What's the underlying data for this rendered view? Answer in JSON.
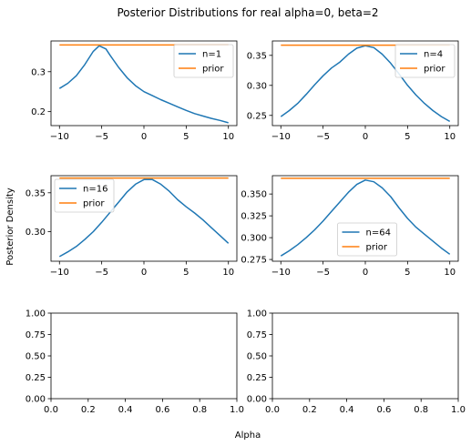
{
  "title": "Posterior Distributions for real alpha=0, beta=2",
  "ylabel": "Posterior Density",
  "xlabel": "Alpha",
  "colors": {
    "posterior": "#1f77b4",
    "prior": "#ff7f0e"
  },
  "chart_data": [
    {
      "type": "line",
      "xlim": [
        -11,
        11
      ],
      "ylim": [
        0.165,
        0.377
      ],
      "xticks": [
        -10,
        -5,
        0,
        5,
        10
      ],
      "xtick_labels": [
        "−10",
        "−5",
        "0",
        "5",
        "10"
      ],
      "yticks": [
        0.2,
        0.3
      ],
      "ytick_labels": [
        "0.2",
        "0.3"
      ],
      "legend_placement": "upper right",
      "series": [
        {
          "name": "n=1",
          "role": "posterior",
          "x": [
            -10,
            -9,
            -8,
            -7,
            -6,
            -5.3,
            -4.5,
            -4,
            -3,
            -2,
            -1,
            0,
            1,
            2,
            3,
            4,
            5,
            6,
            7,
            8,
            9,
            10
          ],
          "y": [
            0.258,
            0.271,
            0.29,
            0.318,
            0.351,
            0.365,
            0.357,
            0.341,
            0.311,
            0.285,
            0.265,
            0.25,
            0.24,
            0.23,
            0.221,
            0.212,
            0.203,
            0.195,
            0.189,
            0.183,
            0.178,
            0.172
          ]
        },
        {
          "name": "prior",
          "role": "prior",
          "x": [
            -10,
            10
          ],
          "y": [
            0.367,
            0.367
          ]
        }
      ]
    },
    {
      "type": "line",
      "xlim": [
        -11,
        11
      ],
      "ylim": [
        0.233,
        0.374
      ],
      "xticks": [
        -10,
        -5,
        0,
        5,
        10
      ],
      "xtick_labels": [
        "−10",
        "−5",
        "0",
        "5",
        "10"
      ],
      "yticks": [
        0.25,
        0.3,
        0.35
      ],
      "ytick_labels": [
        "0.25",
        "0.30",
        "0.35"
      ],
      "legend_placement": "upper right",
      "series": [
        {
          "name": "n=4",
          "role": "posterior",
          "x": [
            -10,
            -9,
            -8,
            -7,
            -6,
            -5,
            -4,
            -3,
            -2,
            -1,
            0,
            1,
            2,
            3,
            4,
            5,
            6,
            7,
            8,
            9,
            10
          ],
          "y": [
            0.248,
            0.258,
            0.27,
            0.285,
            0.301,
            0.316,
            0.329,
            0.339,
            0.352,
            0.362,
            0.366,
            0.363,
            0.352,
            0.337,
            0.319,
            0.3,
            0.284,
            0.27,
            0.258,
            0.248,
            0.24
          ]
        },
        {
          "name": "prior",
          "role": "prior",
          "x": [
            -10,
            10
          ],
          "y": [
            0.367,
            0.367
          ]
        }
      ]
    },
    {
      "type": "line",
      "xlim": [
        -11,
        11
      ],
      "ylim": [
        0.262,
        0.372
      ],
      "xticks": [
        -10,
        -5,
        0,
        5,
        10
      ],
      "xtick_labels": [
        "−10",
        "−5",
        "0",
        "5",
        "10"
      ],
      "yticks": [
        0.3,
        0.35
      ],
      "ytick_labels": [
        "0.30",
        "0.35"
      ],
      "legend_placement": "upper left",
      "series": [
        {
          "name": "n=16",
          "role": "posterior",
          "x": [
            -10,
            -9,
            -8,
            -7,
            -6,
            -5,
            -4,
            -3,
            -2,
            -1,
            0,
            1,
            2,
            3,
            4,
            5,
            6,
            7,
            8,
            9,
            10
          ],
          "y": [
            0.268,
            0.274,
            0.281,
            0.29,
            0.3,
            0.312,
            0.325,
            0.338,
            0.351,
            0.361,
            0.367,
            0.367,
            0.361,
            0.352,
            0.341,
            0.332,
            0.324,
            0.315,
            0.305,
            0.295,
            0.285
          ]
        },
        {
          "name": "prior",
          "role": "prior",
          "x": [
            -10,
            10
          ],
          "y": [
            0.369,
            0.369
          ]
        }
      ]
    },
    {
      "type": "line",
      "xlim": [
        -11,
        11
      ],
      "ylim": [
        0.273,
        0.371
      ],
      "xticks": [
        -10,
        -5,
        0,
        5,
        10
      ],
      "xtick_labels": [
        "−10",
        "−5",
        "0",
        "5",
        "10"
      ],
      "yticks": [
        0.275,
        0.3,
        0.325,
        0.35
      ],
      "ytick_labels": [
        "0.275",
        "0.300",
        "0.325",
        "0.350"
      ],
      "legend_placement": "lower center",
      "series": [
        {
          "name": "n=64",
          "role": "posterior",
          "x": [
            -10,
            -9,
            -8,
            -7,
            -6,
            -5,
            -4,
            -3,
            -2,
            -1,
            0,
            1,
            2,
            3,
            4,
            5,
            6,
            7,
            8,
            9,
            10
          ],
          "y": [
            0.279,
            0.285,
            0.292,
            0.3,
            0.309,
            0.319,
            0.33,
            0.341,
            0.352,
            0.361,
            0.366,
            0.364,
            0.357,
            0.347,
            0.334,
            0.322,
            0.312,
            0.304,
            0.296,
            0.288,
            0.281
          ]
        },
        {
          "name": "prior",
          "role": "prior",
          "x": [
            -10,
            10
          ],
          "y": [
            0.368,
            0.368
          ]
        }
      ]
    },
    {
      "type": "line",
      "xlim": [
        0,
        1
      ],
      "ylim": [
        0,
        1
      ],
      "xticks": [
        0,
        0.2,
        0.4,
        0.6,
        0.8,
        1
      ],
      "xtick_labels": [
        "0.0",
        "0.2",
        "0.4",
        "0.6",
        "0.8",
        "1.0"
      ],
      "yticks": [
        0,
        0.25,
        0.5,
        0.75,
        1
      ],
      "ytick_labels": [
        "0.00",
        "0.25",
        "0.50",
        "0.75",
        "1.00"
      ],
      "series": []
    },
    {
      "type": "line",
      "xlim": [
        0,
        1
      ],
      "ylim": [
        0,
        1
      ],
      "xticks": [
        0,
        0.2,
        0.4,
        0.6,
        0.8,
        1
      ],
      "xtick_labels": [
        "0.0",
        "0.2",
        "0.4",
        "0.6",
        "0.8",
        "1.0"
      ],
      "yticks": [
        0,
        0.25,
        0.5,
        0.75,
        1
      ],
      "ytick_labels": [
        "0.00",
        "0.25",
        "0.50",
        "0.75",
        "1.00"
      ],
      "series": []
    }
  ]
}
